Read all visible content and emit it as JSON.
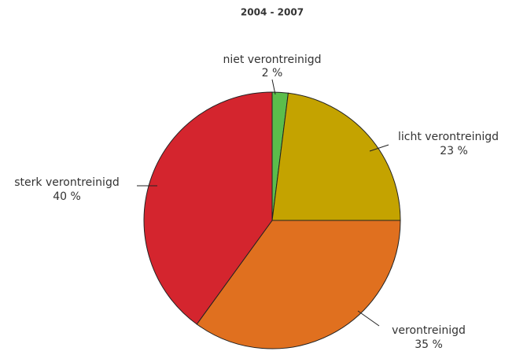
{
  "chart_data": {
    "type": "pie",
    "title": "2004 - 2007",
    "categories": [
      "niet verontreinigd",
      "licht verontreinigd",
      "verontreinigd",
      "sterk verontreinigd"
    ],
    "values": [
      2,
      23,
      35,
      40
    ],
    "value_labels": [
      "2 %",
      "23 %",
      "35 %",
      "40 %"
    ],
    "colors": [
      "#5bbd4b",
      "#c4a300",
      "#e0701f",
      "#d4252e"
    ]
  }
}
